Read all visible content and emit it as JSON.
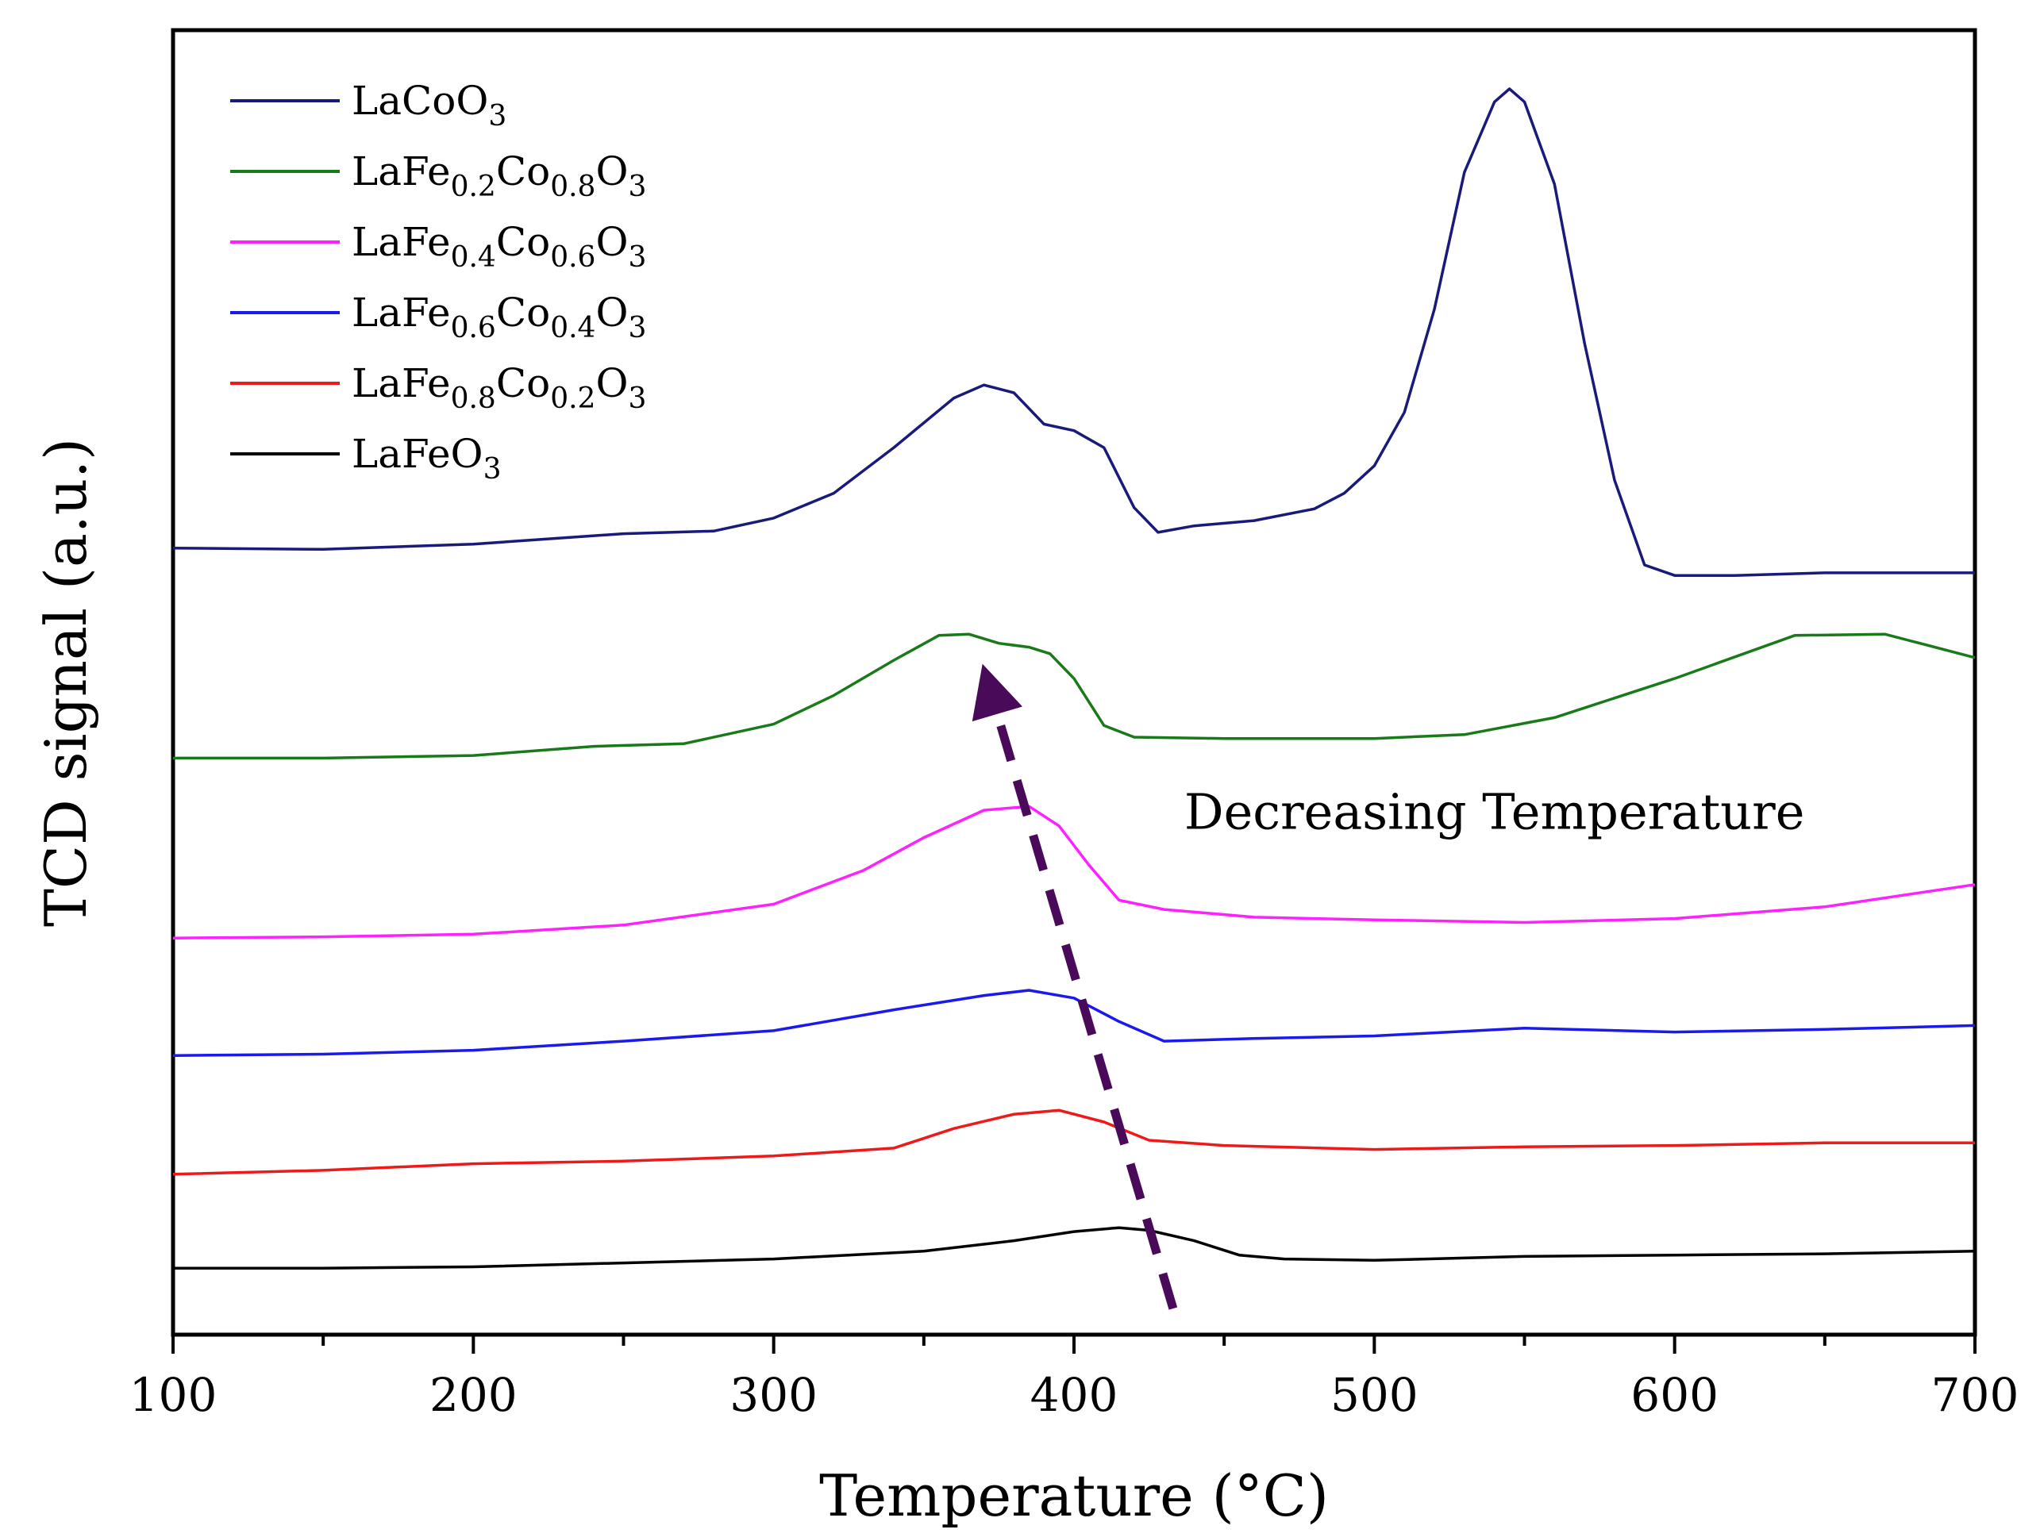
{
  "chart_data": {
    "type": "line",
    "title": "",
    "xlabel": "Temperature (°C)",
    "ylabel": "TCD signal (a.u.)",
    "xlim": [
      100,
      700
    ],
    "x_ticks": [
      100,
      200,
      300,
      400,
      500,
      600,
      700
    ],
    "x_minor_ticks": [
      150,
      250,
      350,
      450,
      550,
      650
    ],
    "y_ticks_shown": false,
    "ylim": [
      0,
      1
    ],
    "legend_position": "top-left",
    "series": [
      {
        "name": "LaCoO3",
        "label_parts": [
          [
            "LaCoO",
            ""
          ],
          [
            "3",
            "sub"
          ]
        ],
        "color": "#1a1a7a",
        "points": [
          [
            100,
            0.603
          ],
          [
            150,
            0.602
          ],
          [
            200,
            0.606
          ],
          [
            250,
            0.614
          ],
          [
            280,
            0.616
          ],
          [
            300,
            0.626
          ],
          [
            320,
            0.645
          ],
          [
            340,
            0.68
          ],
          [
            360,
            0.718
          ],
          [
            370,
            0.728
          ],
          [
            380,
            0.722
          ],
          [
            390,
            0.698
          ],
          [
            400,
            0.693
          ],
          [
            410,
            0.68
          ],
          [
            420,
            0.634
          ],
          [
            428,
            0.615
          ],
          [
            440,
            0.62
          ],
          [
            460,
            0.624
          ],
          [
            480,
            0.633
          ],
          [
            490,
            0.645
          ],
          [
            500,
            0.666
          ],
          [
            510,
            0.707
          ],
          [
            520,
            0.786
          ],
          [
            530,
            0.891
          ],
          [
            540,
            0.945
          ],
          [
            545,
            0.955
          ],
          [
            550,
            0.945
          ],
          [
            560,
            0.882
          ],
          [
            570,
            0.76
          ],
          [
            580,
            0.655
          ],
          [
            590,
            0.59
          ],
          [
            600,
            0.582
          ],
          [
            620,
            0.582
          ],
          [
            650,
            0.584
          ],
          [
            700,
            0.584
          ]
        ]
      },
      {
        "name": "LaFe0.2Co0.8O3",
        "label_parts": [
          [
            "LaFe",
            ""
          ],
          [
            "0.2",
            "sub"
          ],
          [
            "Co",
            ""
          ],
          [
            "0.8",
            "sub"
          ],
          [
            "O",
            ""
          ],
          [
            "3",
            "sub"
          ]
        ],
        "color": "#1a7a1a",
        "points": [
          [
            100,
            0.442
          ],
          [
            150,
            0.442
          ],
          [
            200,
            0.444
          ],
          [
            240,
            0.451
          ],
          [
            270,
            0.453
          ],
          [
            300,
            0.468
          ],
          [
            320,
            0.49
          ],
          [
            340,
            0.517
          ],
          [
            355,
            0.536
          ],
          [
            365,
            0.537
          ],
          [
            375,
            0.53
          ],
          [
            385,
            0.527
          ],
          [
            392,
            0.522
          ],
          [
            400,
            0.503
          ],
          [
            410,
            0.467
          ],
          [
            420,
            0.458
          ],
          [
            450,
            0.457
          ],
          [
            500,
            0.457
          ],
          [
            530,
            0.46
          ],
          [
            560,
            0.473
          ],
          [
            600,
            0.503
          ],
          [
            640,
            0.536
          ],
          [
            670,
            0.537
          ],
          [
            700,
            0.519
          ]
        ]
      },
      {
        "name": "LaFe0.4Co0.6O3",
        "label_parts": [
          [
            "LaFe",
            ""
          ],
          [
            "0.4",
            "sub"
          ],
          [
            "Co",
            ""
          ],
          [
            "0.6",
            "sub"
          ],
          [
            "O",
            ""
          ],
          [
            "3",
            "sub"
          ]
        ],
        "color": "#ff20ff",
        "points": [
          [
            100,
            0.304
          ],
          [
            150,
            0.305
          ],
          [
            200,
            0.307
          ],
          [
            250,
            0.314
          ],
          [
            300,
            0.33
          ],
          [
            330,
            0.356
          ],
          [
            350,
            0.381
          ],
          [
            370,
            0.402
          ],
          [
            385,
            0.405
          ],
          [
            395,
            0.39
          ],
          [
            405,
            0.36
          ],
          [
            415,
            0.333
          ],
          [
            430,
            0.326
          ],
          [
            460,
            0.32
          ],
          [
            500,
            0.318
          ],
          [
            550,
            0.316
          ],
          [
            600,
            0.319
          ],
          [
            650,
            0.328
          ],
          [
            700,
            0.345
          ]
        ]
      },
      {
        "name": "LaFe0.6Co0.4O3",
        "label_parts": [
          [
            "LaFe",
            ""
          ],
          [
            "0.6",
            "sub"
          ],
          [
            "Co",
            ""
          ],
          [
            "0.4",
            "sub"
          ],
          [
            "O",
            ""
          ],
          [
            "3",
            "sub"
          ]
        ],
        "color": "#1a1aee",
        "points": [
          [
            100,
            0.214
          ],
          [
            150,
            0.215
          ],
          [
            200,
            0.218
          ],
          [
            250,
            0.225
          ],
          [
            300,
            0.233
          ],
          [
            340,
            0.249
          ],
          [
            370,
            0.26
          ],
          [
            385,
            0.264
          ],
          [
            400,
            0.258
          ],
          [
            415,
            0.24
          ],
          [
            430,
            0.225
          ],
          [
            460,
            0.227
          ],
          [
            500,
            0.229
          ],
          [
            550,
            0.235
          ],
          [
            600,
            0.232
          ],
          [
            650,
            0.234
          ],
          [
            700,
            0.237
          ]
        ]
      },
      {
        "name": "LaFe0.8Co0.2O3",
        "label_parts": [
          [
            "LaFe",
            ""
          ],
          [
            "0.8",
            "sub"
          ],
          [
            "Co",
            ""
          ],
          [
            "0.2",
            "sub"
          ],
          [
            "O",
            ""
          ],
          [
            "3",
            "sub"
          ]
        ],
        "color": "#ee1a1a",
        "points": [
          [
            100,
            0.123
          ],
          [
            150,
            0.126
          ],
          [
            200,
            0.131
          ],
          [
            250,
            0.133
          ],
          [
            300,
            0.137
          ],
          [
            340,
            0.143
          ],
          [
            360,
            0.158
          ],
          [
            380,
            0.169
          ],
          [
            395,
            0.172
          ],
          [
            410,
            0.163
          ],
          [
            425,
            0.149
          ],
          [
            450,
            0.145
          ],
          [
            500,
            0.142
          ],
          [
            550,
            0.144
          ],
          [
            600,
            0.145
          ],
          [
            650,
            0.147
          ],
          [
            700,
            0.147
          ]
        ]
      },
      {
        "name": "LaFeO3",
        "label_parts": [
          [
            "LaFeO",
            ""
          ],
          [
            "3",
            "sub"
          ]
        ],
        "color": "#000000",
        "points": [
          [
            100,
            0.051
          ],
          [
            150,
            0.051
          ],
          [
            200,
            0.052
          ],
          [
            250,
            0.055
          ],
          [
            300,
            0.058
          ],
          [
            350,
            0.064
          ],
          [
            380,
            0.072
          ],
          [
            400,
            0.079
          ],
          [
            415,
            0.082
          ],
          [
            425,
            0.08
          ],
          [
            440,
            0.072
          ],
          [
            455,
            0.061
          ],
          [
            470,
            0.058
          ],
          [
            500,
            0.057
          ],
          [
            550,
            0.06
          ],
          [
            600,
            0.061
          ],
          [
            650,
            0.062
          ],
          [
            700,
            0.064
          ]
        ]
      }
    ],
    "annotations": [
      {
        "text": "Decreasing Temperature",
        "type": "text",
        "x": 540,
        "y": 0.4
      },
      {
        "text": "",
        "type": "dashed-arrow",
        "from": [
          433,
          0.02
        ],
        "to": [
          372,
          0.495
        ],
        "color": "#4a0a5a"
      }
    ]
  }
}
